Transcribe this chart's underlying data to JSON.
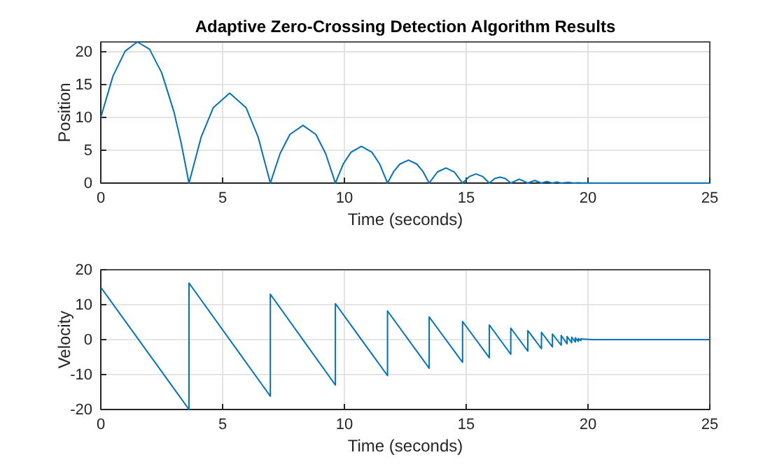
{
  "chart_data": [
    {
      "type": "line",
      "title": "Adaptive Zero-Crossing Detection Algorithm Results",
      "xlabel": "Time (seconds)",
      "ylabel": "Position",
      "xlim": [
        0,
        25
      ],
      "xticks": [
        0,
        5,
        10,
        15,
        20,
        25
      ],
      "ylim": [
        0,
        21.5
      ],
      "yticks": [
        0,
        5,
        10,
        15,
        20
      ],
      "grid": true,
      "marker": "none",
      "line_style": "solid",
      "series": [
        {
          "color": "#0072bd",
          "x": [
            0,
            0.5,
            1,
            1.5,
            2,
            2.5,
            3,
            3.3,
            3.62,
            4.12,
            4.62,
            5.29,
            5.96,
            6.46,
            6.96,
            7.36,
            7.76,
            8.3,
            8.83,
            9.23,
            9.63,
            9.95,
            10.27,
            10.7,
            11.13,
            11.45,
            11.77,
            12.03,
            12.28,
            12.63,
            12.97,
            13.22,
            13.48,
            13.82,
            14.17,
            14.51,
            14.85,
            15.13,
            15.4,
            15.68,
            15.95,
            16.17,
            16.39,
            16.61,
            16.83,
            17.18,
            17.53,
            17.81,
            18.09,
            18.31,
            18.54,
            18.72,
            18.9,
            19.19,
            19.42,
            19.6,
            19.75,
            19.9,
            20,
            25
          ],
          "values": [
            10,
            16.3,
            20.1,
            21.5,
            20.4,
            16.8,
            10.9,
            6.1,
            0,
            7,
            11.5,
            13.7,
            11.5,
            7,
            0,
            4.5,
            7.4,
            8.8,
            7.4,
            4.5,
            0,
            2.9,
            4.7,
            5.6,
            4.7,
            2.9,
            0,
            1.8,
            2.9,
            3.5,
            2.9,
            1.8,
            0,
            1.7,
            2.3,
            1.7,
            0,
            1,
            1.4,
            1,
            0,
            0.7,
            0.9,
            0.7,
            0,
            0.6,
            0,
            0.4,
            0,
            0.25,
            0,
            0.16,
            0,
            0.1,
            0,
            0.06,
            0,
            0.03,
            0,
            0
          ]
        }
      ]
    },
    {
      "type": "line",
      "xlabel": "Time (seconds)",
      "ylabel": "Velocity",
      "xlim": [
        0,
        25
      ],
      "xticks": [
        0,
        5,
        10,
        15,
        20,
        25
      ],
      "ylim": [
        -20,
        20
      ],
      "yticks": [
        -20,
        -10,
        0,
        10,
        20
      ],
      "grid": true,
      "marker": "none",
      "line_style": "solid",
      "series": [
        {
          "color": "#0072bd",
          "x": [
            0,
            3.62,
            3.62,
            6.96,
            6.96,
            9.63,
            9.63,
            11.77,
            11.77,
            13.48,
            13.48,
            14.85,
            14.85,
            15.95,
            15.95,
            16.83,
            16.83,
            17.53,
            17.53,
            18.09,
            18.09,
            18.54,
            18.54,
            18.9,
            18.9,
            19.14,
            19.14,
            19.33,
            19.33,
            19.48,
            19.48,
            19.6,
            19.6,
            19.7,
            19.7,
            20.2,
            25
          ],
          "values": [
            15,
            -20,
            16.2,
            -16.2,
            13,
            -13,
            10.3,
            -10.3,
            8.2,
            -8.2,
            6.5,
            -6.5,
            5.2,
            -5.2,
            4.2,
            -4.2,
            3.3,
            -3.3,
            2.6,
            -2.6,
            2.1,
            -2.1,
            1.6,
            -1.6,
            1.2,
            -1.2,
            0.9,
            -0.9,
            0.7,
            -0.7,
            0.5,
            -0.5,
            0.3,
            -0.3,
            0.2,
            0,
            0
          ]
        }
      ]
    }
  ]
}
